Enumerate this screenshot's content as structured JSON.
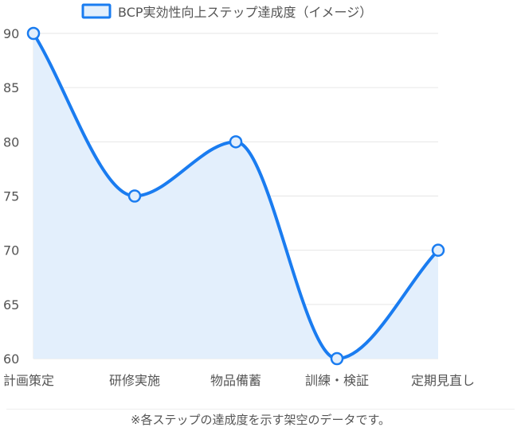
{
  "chart_data": {
    "type": "line",
    "title": "",
    "xlabel": "",
    "ylabel": "",
    "categories": [
      "計画策定",
      "研修実施",
      "物品備蓄",
      "訓練・検証",
      "定期見直し"
    ],
    "series": [
      {
        "name": "BCP実効性向上ステップ達成度（イメージ）",
        "values": [
          90,
          75,
          80,
          60,
          70
        ],
        "color": "#1a7cf0",
        "fill": "#e3effc"
      }
    ],
    "ylim": [
      60,
      90
    ],
    "yticks": [
      "60",
      "65",
      "70",
      "75",
      "80",
      "85",
      "90"
    ],
    "grid": true,
    "smooth": true,
    "legend": "top-center"
  },
  "footer": {
    "note": "※各ステップの達成度を示す架空のデータです。"
  }
}
